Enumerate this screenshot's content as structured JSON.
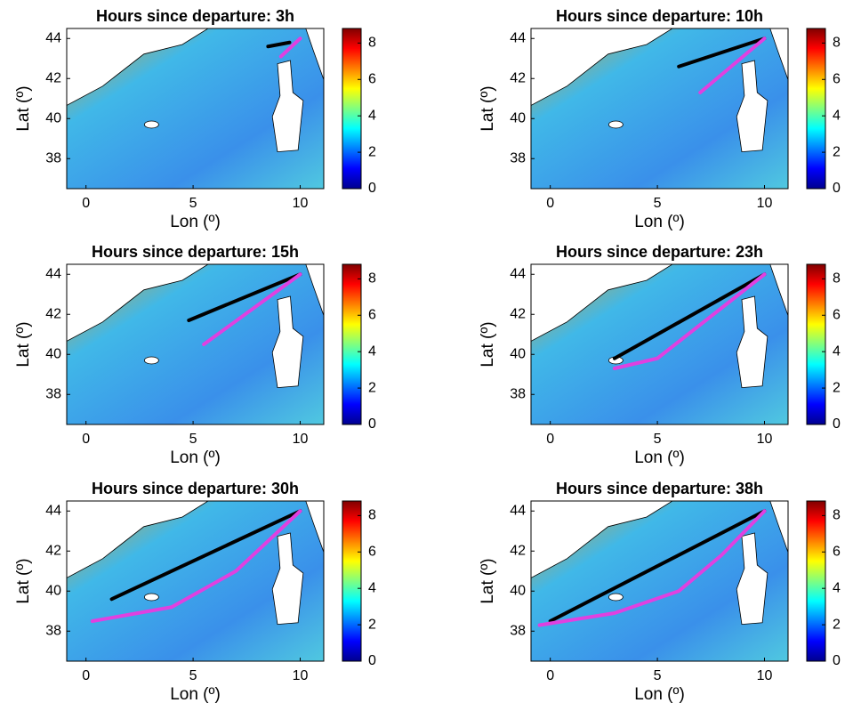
{
  "chart_data": [
    {
      "type": "map",
      "title": "Hours since departure: 3h",
      "xlabel": "Lon (º)",
      "ylabel": "Lat (º)",
      "xlim": [
        -0.9,
        11.1
      ],
      "ylim": [
        36.5,
        44.5
      ],
      "xticks": [
        0,
        5,
        10
      ],
      "yticks": [
        38,
        40,
        42,
        44
      ],
      "colorbar": {
        "lim": [
          0,
          8.8
        ],
        "ticks": [
          0,
          2,
          4,
          6,
          8
        ]
      },
      "series": [
        {
          "color": "#000000",
          "x": [
            8.5,
            9.5
          ],
          "values": [
            43.6,
            43.8
          ]
        },
        {
          "color": "#e040e0",
          "x": [
            9.1,
            10
          ],
          "values": [
            43.1,
            44
          ]
        }
      ]
    },
    {
      "type": "map",
      "title": "Hours since departure: 10h",
      "xlabel": "Lon (º)",
      "ylabel": "Lat (º)",
      "xlim": [
        -0.9,
        11.1
      ],
      "ylim": [
        36.5,
        44.5
      ],
      "xticks": [
        0,
        5,
        10
      ],
      "yticks": [
        38,
        40,
        42,
        44
      ],
      "colorbar": {
        "lim": [
          0,
          8.8
        ],
        "ticks": [
          0,
          2,
          4,
          6,
          8
        ]
      },
      "series": [
        {
          "color": "#000000",
          "x": [
            6,
            10
          ],
          "values": [
            42.6,
            44
          ]
        },
        {
          "color": "#e040e0",
          "x": [
            7,
            10
          ],
          "values": [
            41.3,
            44
          ]
        }
      ]
    },
    {
      "type": "map",
      "title": "Hours since departure: 15h",
      "xlabel": "Lon (º)",
      "ylabel": "Lat (º)",
      "xlim": [
        -0.9,
        11.1
      ],
      "ylim": [
        36.5,
        44.5
      ],
      "xticks": [
        0,
        5,
        10
      ],
      "yticks": [
        38,
        40,
        42,
        44
      ],
      "colorbar": {
        "lim": [
          0,
          8.8
        ],
        "ticks": [
          0,
          2,
          4,
          6,
          8
        ]
      },
      "series": [
        {
          "color": "#000000",
          "x": [
            4.8,
            10
          ],
          "values": [
            41.7,
            44
          ]
        },
        {
          "color": "#e040e0",
          "x": [
            5.5,
            10
          ],
          "values": [
            40.5,
            44
          ]
        }
      ]
    },
    {
      "type": "map",
      "title": "Hours since departure: 23h",
      "xlabel": "Lon (º)",
      "ylabel": "Lat (º)",
      "xlim": [
        -0.9,
        11.1
      ],
      "ylim": [
        36.5,
        44.5
      ],
      "xticks": [
        0,
        5,
        10
      ],
      "yticks": [
        38,
        40,
        42,
        44
      ],
      "colorbar": {
        "lim": [
          0,
          8.8
        ],
        "ticks": [
          0,
          2,
          4,
          6,
          8
        ]
      },
      "series": [
        {
          "color": "#000000",
          "x": [
            3,
            10
          ],
          "values": [
            39.8,
            44
          ]
        },
        {
          "color": "#e040e0",
          "x": [
            3,
            5,
            10
          ],
          "values": [
            39.3,
            39.8,
            44
          ]
        }
      ]
    },
    {
      "type": "map",
      "title": "Hours since departure: 30h",
      "xlabel": "Lon (º)",
      "ylabel": "Lat (º)",
      "xlim": [
        -0.9,
        11.1
      ],
      "ylim": [
        36.5,
        44.5
      ],
      "xticks": [
        0,
        5,
        10
      ],
      "yticks": [
        38,
        40,
        42,
        44
      ],
      "colorbar": {
        "lim": [
          0,
          8.8
        ],
        "ticks": [
          0,
          2,
          4,
          6,
          8
        ]
      },
      "series": [
        {
          "color": "#000000",
          "x": [
            1.2,
            10
          ],
          "values": [
            39.6,
            44
          ]
        },
        {
          "color": "#e040e0",
          "x": [
            0.3,
            4,
            7,
            10
          ],
          "values": [
            38.5,
            39.2,
            41,
            44
          ]
        }
      ]
    },
    {
      "type": "map",
      "title": "Hours since departure: 38h",
      "xlabel": "Lon (º)",
      "ylabel": "Lat (º)",
      "xlim": [
        -0.9,
        11.1
      ],
      "ylim": [
        36.5,
        44.5
      ],
      "xticks": [
        0,
        5,
        10
      ],
      "yticks": [
        38,
        40,
        42,
        44
      ],
      "colorbar": {
        "lim": [
          0,
          8.8
        ],
        "ticks": [
          0,
          2,
          4,
          6,
          8
        ]
      },
      "series": [
        {
          "color": "#000000",
          "x": [
            0,
            10
          ],
          "values": [
            38.5,
            44
          ]
        },
        {
          "color": "#e040e0",
          "x": [
            -0.5,
            3,
            6,
            8,
            10
          ],
          "values": [
            38.3,
            38.9,
            40,
            41.8,
            44
          ]
        }
      ]
    }
  ]
}
